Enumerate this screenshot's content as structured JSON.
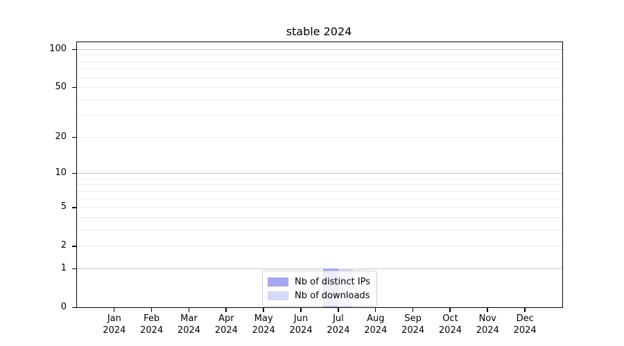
{
  "figure": {
    "background": "#ffffff"
  },
  "chart_data": {
    "type": "bar",
    "title": "stable 2024",
    "xlabel": "",
    "ylabel": "",
    "months": [
      "Jan",
      "Feb",
      "Mar",
      "Apr",
      "May",
      "Jun",
      "Jul",
      "Aug",
      "Sep",
      "Oct",
      "Nov",
      "Dec"
    ],
    "year": "2024",
    "series": [
      {
        "name": "Nb of distinct IPs",
        "color": "#a6a6f1",
        "values": [
          0,
          0,
          0,
          0,
          0,
          0,
          1,
          0,
          0,
          0,
          0,
          0
        ]
      },
      {
        "name": "Nb of downloads",
        "color": "#d7d7f8",
        "values": [
          0,
          0,
          0,
          0,
          0,
          0,
          1,
          0,
          0,
          0,
          0,
          0
        ]
      }
    ],
    "y_axis": {
      "scale": "log1p",
      "ticks": [
        0,
        1,
        2,
        5,
        10,
        20,
        50,
        100
      ],
      "major_gridlines": [
        1,
        10,
        100
      ],
      "minor_gridlines": [
        2,
        3,
        4,
        5,
        6,
        7,
        8,
        9,
        20,
        30,
        40,
        50,
        60,
        70,
        80,
        90
      ],
      "max": 113
    },
    "legend": {
      "position": "lower center"
    },
    "colors": {
      "major_grid": "#c6c6c6",
      "minor_grid": "#ececec",
      "spine": "#000000",
      "text": "#000000"
    }
  }
}
